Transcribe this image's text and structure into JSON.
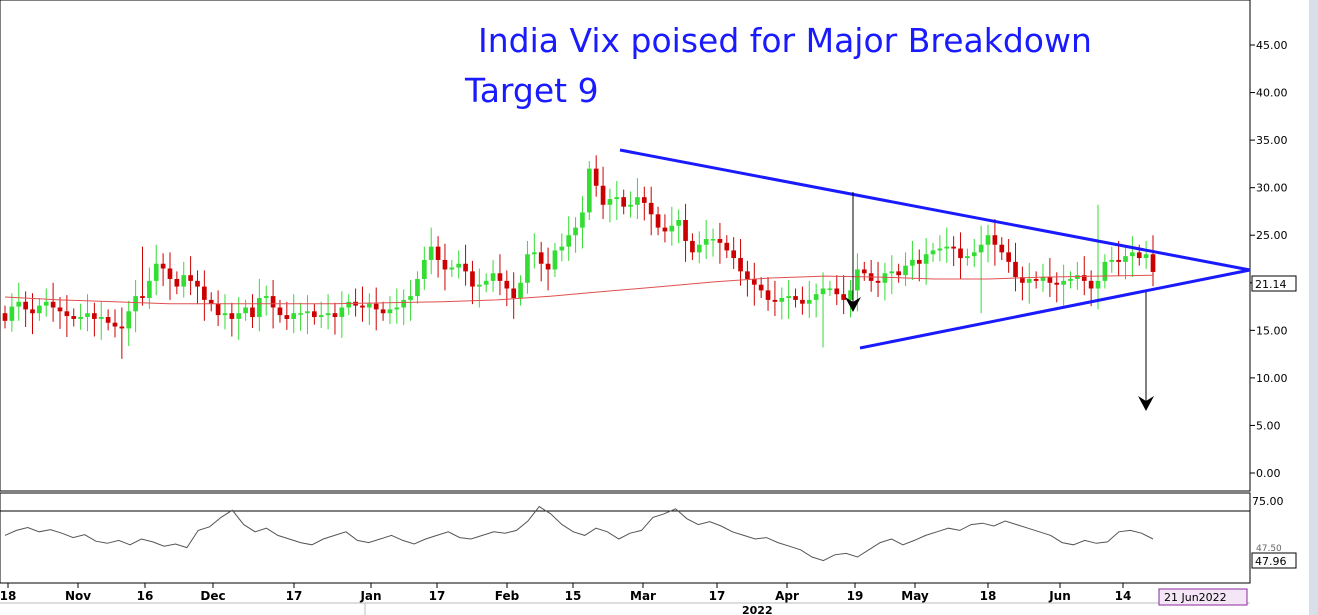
{
  "chart_data": {
    "type": "candlestick",
    "title": "India Vix poised for Major Breakdown",
    "subtitle": "Target 9",
    "price_axis": {
      "ylim": [
        0,
        48
      ],
      "ticks": [
        "0.00",
        "5.00",
        "10.00",
        "15.00",
        "20.00",
        "25.00",
        "30.00",
        "35.00",
        "40.00",
        "45.00"
      ],
      "last_value": "21.14"
    },
    "indicator_axis": {
      "ticks": [
        "75.00"
      ],
      "last_value": "47.96",
      "partial_label": "47.50"
    },
    "x_ticks": [
      "18",
      "Nov",
      "16",
      "Dec",
      "17",
      "Jan",
      "17",
      "Feb",
      "15",
      "Mar",
      "17",
      "Apr",
      "19",
      "May",
      "18",
      "Jun",
      "14"
    ],
    "year_label": "2022",
    "date_box": "21 Jun2022",
    "colors": {
      "up": "#33dd33",
      "down": "#cc0000",
      "triangle": "#1a1aff",
      "ma": "#e05050",
      "arrow": "#000000",
      "indicator": "#555555"
    },
    "closes": [
      16,
      17.5,
      18,
      17.2,
      16.8,
      17.6,
      18,
      17.4,
      17,
      16.5,
      16.2,
      16.4,
      16.8,
      16.2,
      16.4,
      15.8,
      15.4,
      15.2,
      17,
      18.6,
      18.4,
      20.2,
      22,
      21.5,
      20.4,
      19.6,
      20.8,
      20.2,
      19.6,
      18.2,
      17.8,
      16.6,
      16.8,
      16.2,
      16.8,
      17.4,
      16.4,
      18.4,
      18.6,
      17.4,
      16.6,
      16.2,
      16.8,
      16.8,
      17,
      16.4,
      16.6,
      16.8,
      16.4,
      17.4,
      18,
      17.6,
      17.4,
      17.8,
      17.2,
      16.8,
      17.2,
      17.4,
      18.2,
      18.6,
      20.4,
      22.4,
      23.8,
      22.4,
      21.4,
      21.6,
      22,
      21.2,
      19.6,
      19.8,
      20.2,
      21,
      20.2,
      19.4,
      18.4,
      20,
      23,
      23.2,
      22,
      21.4,
      23.4,
      23.8,
      25,
      25.8,
      27.4,
      32,
      30.2,
      28.2,
      28.8,
      29,
      28,
      28.2,
      29,
      28.4,
      27.2,
      25.8,
      25.4,
      26,
      26.6,
      24.4,
      23.2,
      24,
      24.6,
      24.6,
      24.2,
      23.4,
      22.6,
      21.2,
      20.4,
      19.8,
      19.2,
      18.2,
      18,
      18.4,
      18.6,
      18.2,
      17.8,
      18.2,
      18.8,
      19.4,
      19.4,
      18.8,
      18.2,
      19.2,
      21.4,
      21,
      20.2,
      20,
      21,
      21.2,
      20.8,
      21.8,
      22.4,
      22,
      23,
      23.4,
      23.6,
      23.8,
      23.6,
      22.6,
      22.8,
      23.2,
      24,
      25,
      24,
      23.2,
      22.2,
      20.6,
      20,
      20.4,
      20.2,
      20.6,
      20,
      19.8,
      20.2,
      20.4,
      20.8,
      20.2,
      19.4,
      20.2,
      22.2,
      22.4,
      22.2,
      22.8,
      23.2,
      22.6,
      23,
      21.14
    ],
    "ma_y": [
      18.5,
      18.2,
      18.0,
      17.8,
      17.8,
      17.8,
      17.8,
      17.9,
      18.0,
      18.2,
      18.6,
      19.1,
      19.6,
      20.1,
      20.5,
      20.7,
      20.6,
      20.4,
      20.4,
      20.6,
      20.7,
      20.8
    ],
    "rsi": [
      0.55,
      0.62,
      0.66,
      0.6,
      0.63,
      0.58,
      0.52,
      0.56,
      0.47,
      0.44,
      0.48,
      0.42,
      0.5,
      0.46,
      0.4,
      0.43,
      0.38,
      0.62,
      0.67,
      0.8,
      0.9,
      0.7,
      0.6,
      0.65,
      0.55,
      0.5,
      0.45,
      0.42,
      0.5,
      0.55,
      0.6,
      0.48,
      0.45,
      0.5,
      0.55,
      0.48,
      0.43,
      0.5,
      0.55,
      0.6,
      0.52,
      0.5,
      0.55,
      0.6,
      0.58,
      0.62,
      0.75,
      0.95,
      0.85,
      0.7,
      0.6,
      0.55,
      0.65,
      0.6,
      0.5,
      0.58,
      0.62,
      0.8,
      0.85,
      0.92,
      0.78,
      0.7,
      0.74,
      0.68,
      0.6,
      0.55,
      0.5,
      0.52,
      0.45,
      0.4,
      0.35,
      0.25,
      0.2,
      0.28,
      0.3,
      0.25,
      0.35,
      0.45,
      0.5,
      0.42,
      0.48,
      0.55,
      0.6,
      0.65,
      0.62,
      0.7,
      0.72,
      0.68,
      0.75,
      0.7,
      0.65,
      0.6,
      0.55,
      0.45,
      0.42,
      0.48,
      0.44,
      0.46,
      0.6,
      0.62,
      0.58,
      0.5
    ]
  }
}
